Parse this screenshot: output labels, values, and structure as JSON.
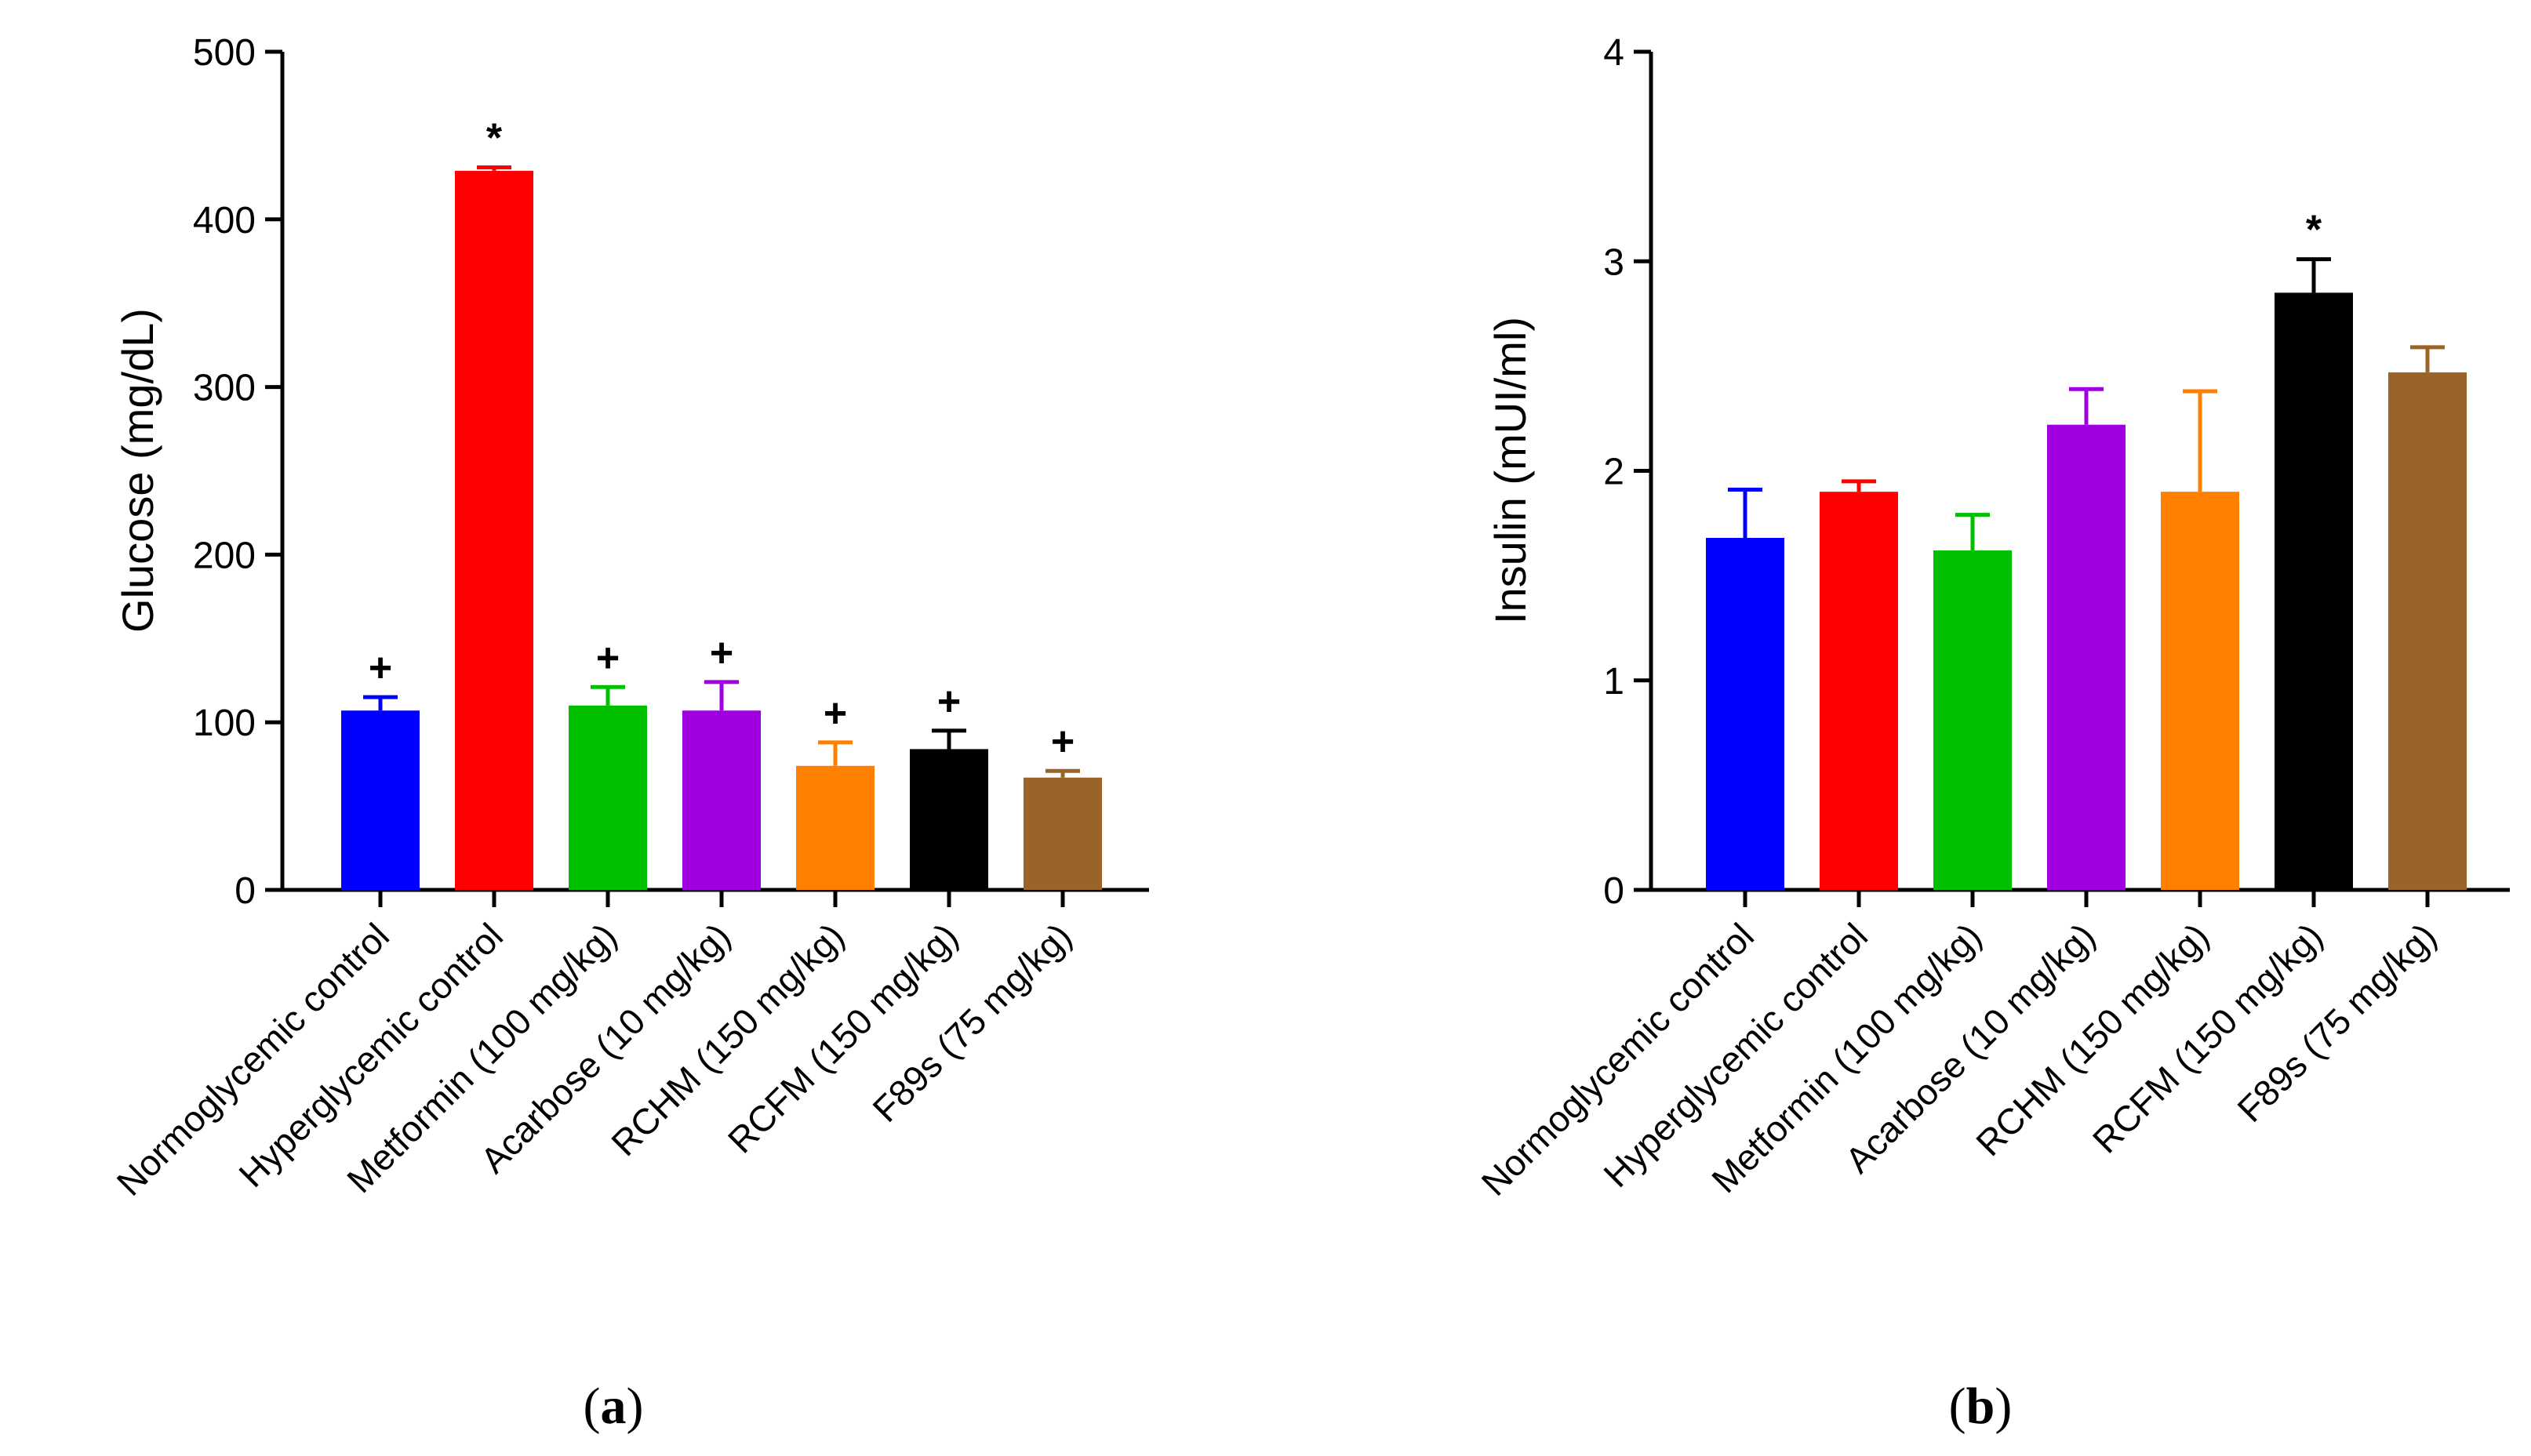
{
  "colors": [
    "#0000ff",
    "#ff0000",
    "#00c000",
    "#a000e0",
    "#ff8000",
    "#000000",
    "#9a6428"
  ],
  "chart_data": [
    {
      "type": "bar",
      "panel_label_open": "(",
      "panel_label": "a",
      "panel_label_close": ")",
      "ylabel": "Glucose (mg/dL)",
      "ylim": [
        0,
        500
      ],
      "yticks": [
        "0",
        "100",
        "200",
        "300",
        "400",
        "500"
      ],
      "categories": [
        "Normoglycemic control",
        "Hyperglycemic control",
        "Metformin (100 mg/kg)",
        "Acarbose (10 mg/kg)",
        "RCHM (150 mg/kg)",
        "RCFM (150 mg/kg)",
        "F89s (75 mg/kg)"
      ],
      "values": [
        107,
        429,
        110,
        107,
        74,
        84,
        67
      ],
      "errors": [
        8,
        2,
        11,
        17,
        14,
        11,
        4
      ],
      "significance": [
        "+",
        "*",
        "+",
        "+",
        "+",
        "+",
        "+"
      ]
    },
    {
      "type": "bar",
      "panel_label_open": "(",
      "panel_label": "b",
      "panel_label_close": ")",
      "ylabel": "Insulin (mUI/ml)",
      "ylim": [
        0,
        4
      ],
      "yticks": [
        "0",
        "1",
        "2",
        "3",
        "4"
      ],
      "categories": [
        "Normoglycemic control",
        "Hyperglycemic control",
        "Metformin (100 mg/kg)",
        "Acarbose (10 mg/kg)",
        "RCHM (150 mg/kg)",
        "RCFM (150 mg/kg)",
        "F89s (75 mg/kg)"
      ],
      "values": [
        1.68,
        1.9,
        1.62,
        2.22,
        1.9,
        2.85,
        2.47
      ],
      "errors": [
        0.23,
        0.05,
        0.17,
        0.17,
        0.48,
        0.16,
        0.12
      ],
      "significance": [
        "",
        "",
        "",
        "",
        "",
        "*",
        ""
      ]
    }
  ]
}
